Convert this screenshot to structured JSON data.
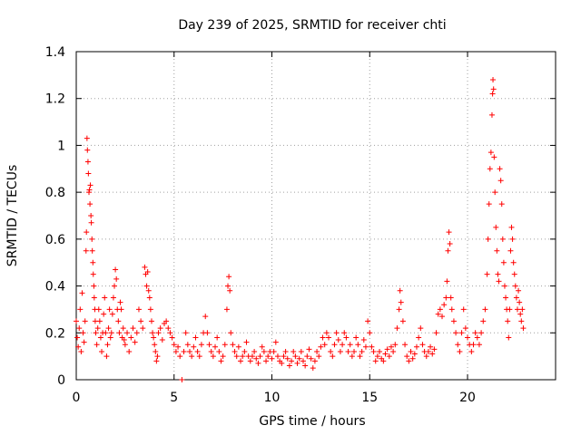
{
  "chart_data": {
    "type": "scatter",
    "title": "Day 239 of 2025, SRMTID for receiver chti",
    "xlabel": "GPS time / hours",
    "ylabel": "SRMTID / TECUs",
    "xlim": [
      0,
      24.5
    ],
    "ylim": [
      0,
      1.4
    ],
    "xticks": [
      0,
      5,
      10,
      15,
      20
    ],
    "xtick_labels": [
      "0",
      "5",
      "10",
      "15",
      "20"
    ],
    "yticks": [
      0,
      0.2,
      0.4,
      0.6,
      0.8,
      1,
      1.2,
      1.4
    ],
    "ytick_labels": [
      "0",
      "0.2",
      "0.4",
      "0.6",
      "0.8",
      "1",
      "1.2",
      "1.4"
    ],
    "grid": true,
    "marker": "+",
    "series": [
      {
        "name": "chti",
        "color": "#ff0000",
        "points": [
          [
            0.0,
            0.25
          ],
          [
            0.05,
            0.18
          ],
          [
            0.1,
            0.14
          ],
          [
            0.15,
            0.22
          ],
          [
            0.2,
            0.3
          ],
          [
            0.25,
            0.12
          ],
          [
            0.3,
            0.37
          ],
          [
            0.35,
            0.2
          ],
          [
            0.4,
            0.16
          ],
          [
            0.45,
            0.25
          ],
          [
            0.5,
            0.55
          ],
          [
            0.52,
            0.63
          ],
          [
            0.55,
            1.03
          ],
          [
            0.57,
            0.98
          ],
          [
            0.6,
            0.93
          ],
          [
            0.62,
            0.88
          ],
          [
            0.65,
            0.8
          ],
          [
            0.67,
            0.81
          ],
          [
            0.7,
            0.75
          ],
          [
            0.72,
            0.83
          ],
          [
            0.75,
            0.7
          ],
          [
            0.77,
            0.67
          ],
          [
            0.8,
            0.6
          ],
          [
            0.82,
            0.55
          ],
          [
            0.85,
            0.5
          ],
          [
            0.87,
            0.45
          ],
          [
            0.9,
            0.4
          ],
          [
            0.92,
            0.35
          ],
          [
            0.95,
            0.3
          ],
          [
            0.97,
            0.25
          ],
          [
            1.0,
            0.2
          ],
          [
            1.05,
            0.15
          ],
          [
            1.1,
            0.22
          ],
          [
            1.15,
            0.3
          ],
          [
            1.2,
            0.25
          ],
          [
            1.25,
            0.18
          ],
          [
            1.3,
            0.12
          ],
          [
            1.35,
            0.2
          ],
          [
            1.4,
            0.28
          ],
          [
            1.45,
            0.35
          ],
          [
            1.5,
            0.2
          ],
          [
            1.55,
            0.1
          ],
          [
            1.6,
            0.15
          ],
          [
            1.65,
            0.22
          ],
          [
            1.7,
            0.3
          ],
          [
            1.75,
            0.18
          ],
          [
            1.8,
            0.2
          ],
          [
            1.85,
            0.28
          ],
          [
            1.9,
            0.35
          ],
          [
            1.95,
            0.4
          ],
          [
            2.0,
            0.47
          ],
          [
            2.05,
            0.43
          ],
          [
            2.1,
            0.3
          ],
          [
            2.15,
            0.25
          ],
          [
            2.2,
            0.2
          ],
          [
            2.25,
            0.33
          ],
          [
            2.3,
            0.3
          ],
          [
            2.35,
            0.18
          ],
          [
            2.4,
            0.22
          ],
          [
            2.45,
            0.17
          ],
          [
            2.5,
            0.15
          ],
          [
            2.6,
            0.2
          ],
          [
            2.7,
            0.12
          ],
          [
            2.8,
            0.18
          ],
          [
            2.9,
            0.22
          ],
          [
            3.0,
            0.16
          ],
          [
            3.1,
            0.2
          ],
          [
            3.2,
            0.3
          ],
          [
            3.3,
            0.25
          ],
          [
            3.4,
            0.22
          ],
          [
            3.5,
            0.48
          ],
          [
            3.55,
            0.45
          ],
          [
            3.6,
            0.4
          ],
          [
            3.65,
            0.46
          ],
          [
            3.7,
            0.38
          ],
          [
            3.75,
            0.35
          ],
          [
            3.8,
            0.3
          ],
          [
            3.85,
            0.25
          ],
          [
            3.9,
            0.2
          ],
          [
            3.95,
            0.18
          ],
          [
            4.0,
            0.15
          ],
          [
            4.05,
            0.12
          ],
          [
            4.1,
            0.08
          ],
          [
            4.15,
            0.1
          ],
          [
            4.2,
            0.2
          ],
          [
            4.3,
            0.22
          ],
          [
            4.4,
            0.17
          ],
          [
            4.5,
            0.24
          ],
          [
            4.6,
            0.25
          ],
          [
            4.7,
            0.22
          ],
          [
            4.8,
            0.2
          ],
          [
            4.9,
            0.18
          ],
          [
            5.0,
            0.15
          ],
          [
            5.1,
            0.12
          ],
          [
            5.2,
            0.14
          ],
          [
            5.3,
            0.1
          ],
          [
            5.4,
            0.0
          ],
          [
            5.5,
            0.12
          ],
          [
            5.6,
            0.2
          ],
          [
            5.7,
            0.15
          ],
          [
            5.8,
            0.12
          ],
          [
            5.9,
            0.1
          ],
          [
            6.0,
            0.14
          ],
          [
            6.1,
            0.18
          ],
          [
            6.2,
            0.12
          ],
          [
            6.3,
            0.1
          ],
          [
            6.4,
            0.15
          ],
          [
            6.5,
            0.2
          ],
          [
            6.6,
            0.27
          ],
          [
            6.7,
            0.2
          ],
          [
            6.8,
            0.15
          ],
          [
            6.9,
            0.12
          ],
          [
            7.0,
            0.1
          ],
          [
            7.1,
            0.14
          ],
          [
            7.2,
            0.18
          ],
          [
            7.3,
            0.12
          ],
          [
            7.4,
            0.08
          ],
          [
            7.5,
            0.1
          ],
          [
            7.6,
            0.15
          ],
          [
            7.7,
            0.3
          ],
          [
            7.75,
            0.4
          ],
          [
            7.8,
            0.44
          ],
          [
            7.85,
            0.38
          ],
          [
            7.9,
            0.2
          ],
          [
            8.0,
            0.15
          ],
          [
            8.1,
            0.12
          ],
          [
            8.2,
            0.1
          ],
          [
            8.3,
            0.14
          ],
          [
            8.4,
            0.08
          ],
          [
            8.5,
            0.1
          ],
          [
            8.6,
            0.12
          ],
          [
            8.7,
            0.16
          ],
          [
            8.8,
            0.1
          ],
          [
            8.9,
            0.08
          ],
          [
            9.0,
            0.1
          ],
          [
            9.1,
            0.12
          ],
          [
            9.2,
            0.09
          ],
          [
            9.3,
            0.07
          ],
          [
            9.4,
            0.1
          ],
          [
            9.5,
            0.14
          ],
          [
            9.6,
            0.12
          ],
          [
            9.7,
            0.08
          ],
          [
            9.8,
            0.1
          ],
          [
            9.9,
            0.12
          ],
          [
            10.0,
            0.09
          ],
          [
            10.1,
            0.12
          ],
          [
            10.2,
            0.16
          ],
          [
            10.3,
            0.1
          ],
          [
            10.4,
            0.08
          ],
          [
            10.5,
            0.07
          ],
          [
            10.6,
            0.1
          ],
          [
            10.7,
            0.12
          ],
          [
            10.8,
            0.09
          ],
          [
            10.9,
            0.06
          ],
          [
            11.0,
            0.08
          ],
          [
            11.1,
            0.12
          ],
          [
            11.2,
            0.1
          ],
          [
            11.3,
            0.07
          ],
          [
            11.4,
            0.09
          ],
          [
            11.5,
            0.12
          ],
          [
            11.6,
            0.08
          ],
          [
            11.7,
            0.06
          ],
          [
            11.8,
            0.1
          ],
          [
            11.9,
            0.13
          ],
          [
            12.0,
            0.09
          ],
          [
            12.1,
            0.05
          ],
          [
            12.2,
            0.08
          ],
          [
            12.3,
            0.12
          ],
          [
            12.4,
            0.1
          ],
          [
            12.5,
            0.14
          ],
          [
            12.6,
            0.18
          ],
          [
            12.7,
            0.15
          ],
          [
            12.8,
            0.2
          ],
          [
            12.9,
            0.18
          ],
          [
            13.0,
            0.12
          ],
          [
            13.1,
            0.1
          ],
          [
            13.2,
            0.15
          ],
          [
            13.3,
            0.2
          ],
          [
            13.4,
            0.17
          ],
          [
            13.5,
            0.12
          ],
          [
            13.6,
            0.15
          ],
          [
            13.7,
            0.2
          ],
          [
            13.8,
            0.18
          ],
          [
            13.9,
            0.12
          ],
          [
            14.0,
            0.15
          ],
          [
            14.1,
            0.1
          ],
          [
            14.2,
            0.12
          ],
          [
            14.3,
            0.18
          ],
          [
            14.4,
            0.15
          ],
          [
            14.5,
            0.1
          ],
          [
            14.6,
            0.12
          ],
          [
            14.7,
            0.17
          ],
          [
            14.8,
            0.14
          ],
          [
            14.9,
            0.25
          ],
          [
            15.0,
            0.2
          ],
          [
            15.1,
            0.14
          ],
          [
            15.2,
            0.12
          ],
          [
            15.3,
            0.08
          ],
          [
            15.4,
            0.1
          ],
          [
            15.5,
            0.12
          ],
          [
            15.6,
            0.09
          ],
          [
            15.7,
            0.08
          ],
          [
            15.8,
            0.11
          ],
          [
            15.9,
            0.13
          ],
          [
            16.0,
            0.1
          ],
          [
            16.1,
            0.14
          ],
          [
            16.2,
            0.12
          ],
          [
            16.3,
            0.15
          ],
          [
            16.4,
            0.22
          ],
          [
            16.5,
            0.3
          ],
          [
            16.55,
            0.38
          ],
          [
            16.6,
            0.33
          ],
          [
            16.7,
            0.25
          ],
          [
            16.8,
            0.15
          ],
          [
            16.9,
            0.1
          ],
          [
            17.0,
            0.08
          ],
          [
            17.1,
            0.12
          ],
          [
            17.2,
            0.09
          ],
          [
            17.3,
            0.11
          ],
          [
            17.4,
            0.14
          ],
          [
            17.5,
            0.18
          ],
          [
            17.6,
            0.22
          ],
          [
            17.7,
            0.15
          ],
          [
            17.8,
            0.12
          ],
          [
            17.9,
            0.1
          ],
          [
            18.0,
            0.12
          ],
          [
            18.1,
            0.14
          ],
          [
            18.2,
            0.11
          ],
          [
            18.3,
            0.13
          ],
          [
            18.4,
            0.2
          ],
          [
            18.5,
            0.28
          ],
          [
            18.6,
            0.3
          ],
          [
            18.7,
            0.27
          ],
          [
            18.8,
            0.32
          ],
          [
            18.9,
            0.35
          ],
          [
            18.95,
            0.42
          ],
          [
            19.0,
            0.55
          ],
          [
            19.05,
            0.63
          ],
          [
            19.1,
            0.58
          ],
          [
            19.15,
            0.35
          ],
          [
            19.2,
            0.3
          ],
          [
            19.3,
            0.25
          ],
          [
            19.4,
            0.2
          ],
          [
            19.5,
            0.15
          ],
          [
            19.6,
            0.12
          ],
          [
            19.7,
            0.2
          ],
          [
            19.8,
            0.3
          ],
          [
            19.9,
            0.22
          ],
          [
            20.0,
            0.18
          ],
          [
            20.1,
            0.15
          ],
          [
            20.2,
            0.12
          ],
          [
            20.3,
            0.15
          ],
          [
            20.4,
            0.2
          ],
          [
            20.5,
            0.18
          ],
          [
            20.6,
            0.15
          ],
          [
            20.7,
            0.2
          ],
          [
            20.8,
            0.25
          ],
          [
            20.9,
            0.3
          ],
          [
            21.0,
            0.45
          ],
          [
            21.05,
            0.6
          ],
          [
            21.1,
            0.75
          ],
          [
            21.15,
            0.9
          ],
          [
            21.2,
            0.97
          ],
          [
            21.25,
            1.13
          ],
          [
            21.28,
            1.22
          ],
          [
            21.3,
            1.28
          ],
          [
            21.33,
            1.24
          ],
          [
            21.36,
            0.95
          ],
          [
            21.4,
            0.8
          ],
          [
            21.45,
            0.65
          ],
          [
            21.5,
            0.55
          ],
          [
            21.55,
            0.45
          ],
          [
            21.6,
            0.42
          ],
          [
            21.65,
            0.9
          ],
          [
            21.7,
            0.85
          ],
          [
            21.75,
            0.75
          ],
          [
            21.8,
            0.6
          ],
          [
            21.85,
            0.5
          ],
          [
            21.9,
            0.4
          ],
          [
            21.95,
            0.35
          ],
          [
            22.0,
            0.3
          ],
          [
            22.05,
            0.25
          ],
          [
            22.1,
            0.18
          ],
          [
            22.15,
            0.3
          ],
          [
            22.2,
            0.55
          ],
          [
            22.25,
            0.65
          ],
          [
            22.3,
            0.6
          ],
          [
            22.35,
            0.5
          ],
          [
            22.4,
            0.45
          ],
          [
            22.45,
            0.4
          ],
          [
            22.5,
            0.35
          ],
          [
            22.55,
            0.3
          ],
          [
            22.6,
            0.38
          ],
          [
            22.65,
            0.33
          ],
          [
            22.7,
            0.28
          ],
          [
            22.75,
            0.25
          ],
          [
            22.8,
            0.3
          ],
          [
            22.85,
            0.22
          ]
        ]
      }
    ]
  }
}
